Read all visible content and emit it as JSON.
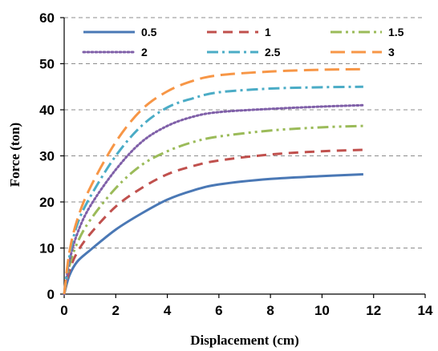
{
  "chart_data": {
    "type": "line",
    "title": "",
    "xlabel": "Displacement (cm)",
    "ylabel": "Force (ton)",
    "xlim": [
      0,
      14
    ],
    "ylim": [
      0,
      60
    ],
    "xticks": [
      "0",
      "2",
      "4",
      "6",
      "8",
      "10",
      "12",
      "14"
    ],
    "yticks": [
      "0",
      "10",
      "20",
      "30",
      "40",
      "50",
      "60"
    ],
    "grid": "horizontal dashed",
    "legend_placement": "top",
    "series": [
      {
        "name": "0.5",
        "color": "#4a78b5",
        "dash": "solid",
        "x": [
          0,
          0.2,
          0.5,
          1,
          2,
          3,
          4,
          5,
          6,
          8,
          10,
          11.6
        ],
        "y": [
          0,
          4,
          7,
          9.5,
          14,
          17.5,
          20.5,
          22.5,
          23.8,
          25,
          25.6,
          26
        ]
      },
      {
        "name": "1",
        "color": "#c0504d",
        "dash": "dash",
        "x": [
          0,
          0.2,
          0.5,
          1,
          2,
          3,
          4,
          5,
          6,
          8,
          10,
          11.6
        ],
        "y": [
          0,
          5,
          9,
          13,
          19,
          23,
          26,
          27.8,
          29,
          30.3,
          31,
          31.3
        ]
      },
      {
        "name": "1.5",
        "color": "#9bbb59",
        "dash": "dashdotdot",
        "x": [
          0,
          0.2,
          0.5,
          1,
          2,
          3,
          4,
          5,
          6,
          8,
          10,
          11.6
        ],
        "y": [
          0,
          6,
          11,
          16,
          23,
          28,
          31,
          33,
          34.2,
          35.5,
          36.2,
          36.5
        ]
      },
      {
        "name": "2",
        "color": "#7f5fa8",
        "dash": "dot",
        "x": [
          0,
          0.2,
          0.5,
          1,
          2,
          3,
          4,
          5,
          6,
          8,
          10,
          11.6
        ],
        "y": [
          0,
          7,
          13,
          19,
          27,
          33,
          36.5,
          38.5,
          39.5,
          40.2,
          40.7,
          41
        ]
      },
      {
        "name": "2.5",
        "color": "#4bacc6",
        "dash": "dashdot",
        "x": [
          0,
          0.2,
          0.5,
          1,
          2,
          3,
          4,
          5,
          6,
          8,
          10,
          11.6
        ],
        "y": [
          0,
          8,
          15,
          21,
          30,
          36.5,
          40.5,
          42.5,
          43.8,
          44.6,
          44.9,
          45
        ]
      },
      {
        "name": "3",
        "color": "#f79646",
        "dash": "longdash",
        "x": [
          0,
          0.2,
          0.5,
          1,
          2,
          3,
          4,
          5,
          6,
          8,
          10,
          11.6
        ],
        "y": [
          0,
          9,
          16,
          23,
          33,
          40,
          44,
          46.3,
          47.5,
          48.3,
          48.7,
          48.8
        ]
      }
    ]
  }
}
